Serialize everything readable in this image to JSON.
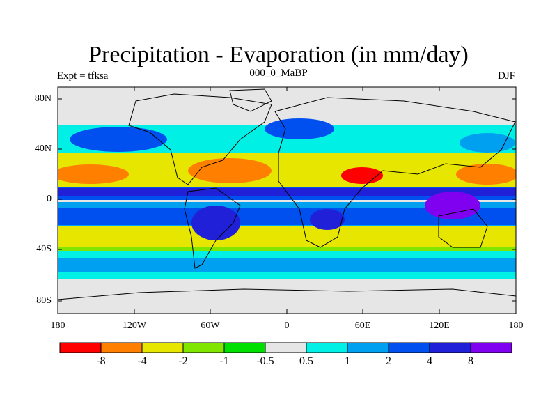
{
  "title": "Precipitation - Evaporation (in mm/day)",
  "subtitle": "000_0_MaBP",
  "left_label": "Expt = tfksa",
  "right_label": "DJF",
  "map": {
    "lat_ticks": [
      "80N",
      "40N",
      "0",
      "40S",
      "80S"
    ],
    "lon_ticks": [
      "180",
      "120W",
      "60W",
      "0",
      "60E",
      "120E",
      "180"
    ],
    "colors": {
      "ocean_fill": "#e6e6e6",
      "red": "#ff0000",
      "orange": "#ff8000",
      "yellow": "#e6e600",
      "lightgreen": "#80e600",
      "green": "#00e000",
      "gray": "#e6e6e6",
      "cyan": "#00f0e6",
      "lightblue": "#00a0f0",
      "blue": "#0050f0",
      "darkblue": "#2020d8",
      "purple": "#8000f0"
    }
  },
  "colorbar": {
    "labels": [
      "-8",
      "-4",
      "-2",
      "-1",
      "-0.5",
      "0.5",
      "1",
      "2",
      "4",
      "8"
    ],
    "colors": [
      "#ff0000",
      "#ff8000",
      "#e6e600",
      "#80e600",
      "#00e000",
      "#e6e6e6",
      "#00f0e6",
      "#00a0f0",
      "#0050f0",
      "#2020d8",
      "#8000f0"
    ]
  }
}
